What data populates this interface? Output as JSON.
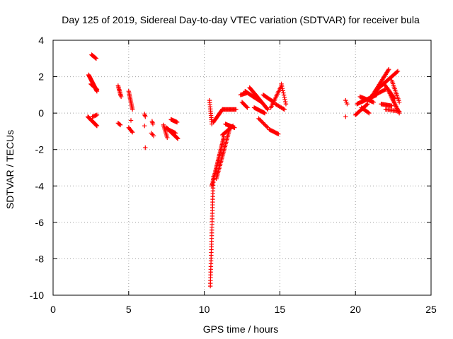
{
  "chart_data": {
    "type": "scatter",
    "title": "Day 125 of 2019, Sidereal Day-to-day VTEC variation (SDTVAR) for receiver bula",
    "xlabel": "GPS time / hours",
    "ylabel": "SDTVAR / TECUs",
    "xlim": [
      0,
      25
    ],
    "ylim": [
      -10,
      4
    ],
    "xticks": [
      0,
      5,
      10,
      15,
      20,
      25
    ],
    "yticks": [
      -10,
      -8,
      -6,
      -4,
      -2,
      0,
      2,
      4
    ],
    "xtick_labels": [
      "0",
      "5",
      "10",
      "15",
      "20",
      "25"
    ],
    "ytick_labels": [
      "-10",
      "-8",
      "-6",
      "-4",
      "-2",
      "0",
      "2",
      "4"
    ],
    "grid": true,
    "marker": "+",
    "color": "#ff0000",
    "segments": [
      {
        "x0": 2.35,
        "x1": 2.9,
        "y0": 2.1,
        "y1": 1.2,
        "n": 28
      },
      {
        "x0": 2.5,
        "x1": 2.9,
        "y0": 1.6,
        "y1": 1.3,
        "n": 14
      },
      {
        "x0": 2.55,
        "x1": 2.85,
        "y0": 3.2,
        "y1": 3.0,
        "n": 8
      },
      {
        "x0": 2.3,
        "x1": 2.9,
        "y0": -0.2,
        "y1": -0.7,
        "n": 22
      },
      {
        "x0": 2.6,
        "x1": 2.9,
        "y0": -0.2,
        "y1": -0.1,
        "n": 6
      },
      {
        "x0": 4.3,
        "x1": 4.5,
        "y0": 1.5,
        "y1": 0.9,
        "n": 10
      },
      {
        "x0": 4.3,
        "x1": 4.45,
        "y0": -0.55,
        "y1": -0.65,
        "n": 4
      },
      {
        "x0": 5.0,
        "x1": 5.25,
        "y0": 1.2,
        "y1": 0.2,
        "n": 14
      },
      {
        "x0": 5.0,
        "x1": 5.25,
        "y0": -0.8,
        "y1": -1.05,
        "n": 6
      },
      {
        "x0": 5.15,
        "x1": 5.2,
        "y0": -0.4,
        "y1": -0.4,
        "n": 1
      },
      {
        "x0": 6.05,
        "x1": 6.1,
        "y0": -0.05,
        "y1": -0.2,
        "n": 3
      },
      {
        "x0": 6.05,
        "x1": 6.1,
        "y0": -0.7,
        "y1": -0.7,
        "n": 1
      },
      {
        "x0": 6.1,
        "x1": 6.15,
        "y0": -1.9,
        "y1": -1.9,
        "n": 1
      },
      {
        "x0": 6.55,
        "x1": 6.6,
        "y0": -0.45,
        "y1": -0.6,
        "n": 3
      },
      {
        "x0": 6.5,
        "x1": 6.65,
        "y0": -1.1,
        "y1": -1.25,
        "n": 3
      },
      {
        "x0": 7.3,
        "x1": 7.55,
        "y0": -0.65,
        "y1": -1.35,
        "n": 10
      },
      {
        "x0": 7.5,
        "x1": 8.25,
        "y0": -0.8,
        "y1": -1.4,
        "n": 28
      },
      {
        "x0": 7.8,
        "x1": 8.2,
        "y0": -0.35,
        "y1": -0.5,
        "n": 14
      },
      {
        "x0": 7.6,
        "x1": 8.1,
        "y0": -0.9,
        "y1": -1.1,
        "n": 12
      },
      {
        "x0": 10.35,
        "x1": 10.5,
        "y0": 0.7,
        "y1": -0.6,
        "n": 12
      },
      {
        "x0": 10.4,
        "x1": 10.6,
        "y0": -9.5,
        "y1": -3.5,
        "n": 40
      },
      {
        "x0": 10.5,
        "x1": 11.3,
        "y0": -4.0,
        "y1": -1.3,
        "n": 40
      },
      {
        "x0": 10.8,
        "x1": 11.7,
        "y0": -3.6,
        "y1": -0.8,
        "n": 36
      },
      {
        "x0": 11.2,
        "x1": 11.9,
        "y0": -1.2,
        "y1": -0.7,
        "n": 16
      },
      {
        "x0": 11.4,
        "x1": 12.0,
        "y0": -0.6,
        "y1": -0.8,
        "n": 14
      },
      {
        "x0": 10.6,
        "x1": 11.2,
        "y0": -0.5,
        "y1": 0.2,
        "n": 16
      },
      {
        "x0": 11.2,
        "x1": 12.1,
        "y0": 0.2,
        "y1": 0.2,
        "n": 18
      },
      {
        "x0": 12.4,
        "x1": 12.8,
        "y0": 1.0,
        "y1": 1.1,
        "n": 8
      },
      {
        "x0": 12.5,
        "x1": 12.85,
        "y0": 0.6,
        "y1": 0.3,
        "n": 8
      },
      {
        "x0": 12.7,
        "x1": 13.8,
        "y0": 1.2,
        "y1": 0.6,
        "n": 26
      },
      {
        "x0": 13.0,
        "x1": 14.2,
        "y0": 1.4,
        "y1": 0.2,
        "n": 30
      },
      {
        "x0": 13.3,
        "x1": 14.0,
        "y0": 0.3,
        "y1": 0.0,
        "n": 16
      },
      {
        "x0": 13.6,
        "x1": 14.2,
        "y0": -0.3,
        "y1": -0.8,
        "n": 10
      },
      {
        "x0": 14.3,
        "x1": 14.9,
        "y0": -0.9,
        "y1": -1.15,
        "n": 12
      },
      {
        "x0": 13.9,
        "x1": 14.6,
        "y0": 1.0,
        "y1": 0.6,
        "n": 14
      },
      {
        "x0": 14.4,
        "x1": 15.1,
        "y0": 0.3,
        "y1": 1.5,
        "n": 16
      },
      {
        "x0": 14.7,
        "x1": 15.3,
        "y0": 0.5,
        "y1": 0.2,
        "n": 10
      },
      {
        "x0": 15.1,
        "x1": 15.4,
        "y0": 1.6,
        "y1": 0.5,
        "n": 10
      },
      {
        "x0": 19.35,
        "x1": 19.45,
        "y0": 0.7,
        "y1": 0.5,
        "n": 3
      },
      {
        "x0": 19.35,
        "x1": 19.4,
        "y0": -0.2,
        "y1": -0.2,
        "n": 1
      },
      {
        "x0": 20.0,
        "x1": 20.8,
        "y0": -0.1,
        "y1": 0.5,
        "n": 18
      },
      {
        "x0": 20.1,
        "x1": 21.4,
        "y0": 0.5,
        "y1": 1.0,
        "n": 26
      },
      {
        "x0": 20.3,
        "x1": 21.2,
        "y0": 0.9,
        "y1": 0.6,
        "n": 18
      },
      {
        "x0": 20.4,
        "x1": 20.9,
        "y0": 0.3,
        "y1": 0.0,
        "n": 10
      },
      {
        "x0": 21.0,
        "x1": 22.2,
        "y0": 0.8,
        "y1": 2.4,
        "n": 30
      },
      {
        "x0": 21.3,
        "x1": 22.8,
        "y0": 1.2,
        "y1": 2.3,
        "n": 30
      },
      {
        "x0": 21.0,
        "x1": 22.0,
        "y0": 0.9,
        "y1": 1.3,
        "n": 18
      },
      {
        "x0": 21.7,
        "x1": 22.4,
        "y0": 0.5,
        "y1": 0.4,
        "n": 14
      },
      {
        "x0": 21.9,
        "x1": 22.6,
        "y0": 1.6,
        "y1": 0.8,
        "n": 14
      },
      {
        "x0": 22.2,
        "x1": 22.9,
        "y0": 1.2,
        "y1": 0.0,
        "n": 20
      },
      {
        "x0": 22.4,
        "x1": 22.9,
        "y0": 1.8,
        "y1": 0.6,
        "n": 14
      },
      {
        "x0": 22.0,
        "x1": 22.9,
        "y0": 0.2,
        "y1": 0.1,
        "n": 12
      }
    ]
  }
}
